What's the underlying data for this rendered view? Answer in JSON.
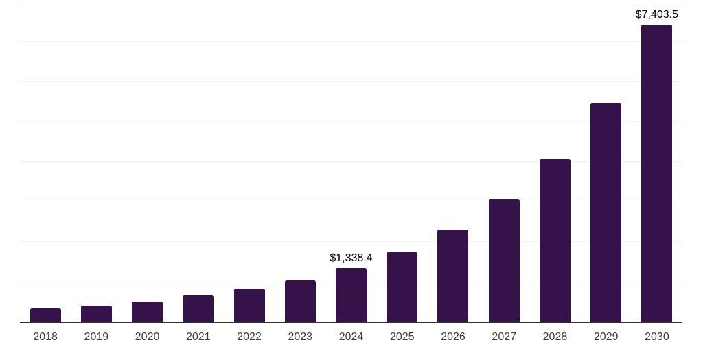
{
  "chart_data": {
    "type": "bar",
    "title": "",
    "xlabel": "",
    "ylabel": "",
    "categories": [
      "2018",
      "2019",
      "2020",
      "2021",
      "2022",
      "2023",
      "2024",
      "2025",
      "2026",
      "2027",
      "2028",
      "2029",
      "2030"
    ],
    "values": [
      320,
      395,
      500,
      645,
      815,
      1030,
      1338.4,
      1725,
      2290,
      3035,
      4045,
      5445,
      7403.5
    ],
    "labeled_points": [
      {
        "category": "2024",
        "label": "$1,338.4"
      },
      {
        "category": "2030",
        "label": "$7,403.5"
      }
    ],
    "ylim": [
      0,
      8000
    ],
    "gridline_step": 1000,
    "grid": "horizontal",
    "legend": "none",
    "colors": {
      "bar": "#36124B",
      "axis_line": "#333333",
      "gridline": "#F3F3F3",
      "data_label": "#000000",
      "tick_label": "#3D3D3D",
      "background": "#FFFFFF"
    }
  }
}
